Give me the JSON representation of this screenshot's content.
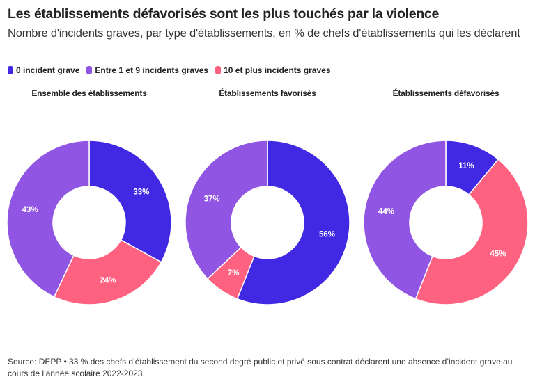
{
  "header": {
    "title": "Les établissements défavorisés sont les plus touchés par la violence",
    "subtitle": "Nombre d'incidents graves, par type d'établissements, en % de chefs d'établissements qui les déclarent"
  },
  "legend": [
    {
      "label": "0 incident grave",
      "color": "#4129e4"
    },
    {
      "label": "Entre 1 et 9 incidents graves",
      "color": "#9055e2"
    },
    {
      "label": "10 et plus incidents graves",
      "color": "#ff6181"
    }
  ],
  "chart_data": [
    {
      "type": "pie",
      "variant": "donut",
      "title": "Ensemble des établissements",
      "categories": [
        "0 incident grave",
        "10 et plus incidents graves",
        "Entre 1 et 9 incidents graves"
      ],
      "values": [
        33,
        24,
        43
      ],
      "labels": [
        "33%",
        "24%",
        "43%"
      ],
      "colors": [
        "#4129e4",
        "#ff6181",
        "#9055e2"
      ],
      "unit": "%"
    },
    {
      "type": "pie",
      "variant": "donut",
      "title": "Établissements favorisés",
      "categories": [
        "0 incident grave",
        "10 et plus incidents graves",
        "Entre 1 et 9 incidents graves"
      ],
      "values": [
        56,
        7,
        37
      ],
      "labels": [
        "56%",
        "7%",
        "37%"
      ],
      "colors": [
        "#4129e4",
        "#ff6181",
        "#9055e2"
      ],
      "unit": "%"
    },
    {
      "type": "pie",
      "variant": "donut",
      "title": "Établissements défavorisés",
      "categories": [
        "0 incident grave",
        "10 et plus incidents graves",
        "Entre 1 et 9 incidents graves"
      ],
      "values": [
        11,
        45,
        44
      ],
      "labels": [
        "11%",
        "45%",
        "44%"
      ],
      "colors": [
        "#4129e4",
        "#ff6181",
        "#9055e2"
      ],
      "unit": "%"
    }
  ],
  "footer": {
    "source": "Source: DEPP • 33 % des chefs d’établissement du second degré public et privé sous contrat déclarent une absence d’incident grave au cours de l’année scolaire 2022-2023."
  }
}
